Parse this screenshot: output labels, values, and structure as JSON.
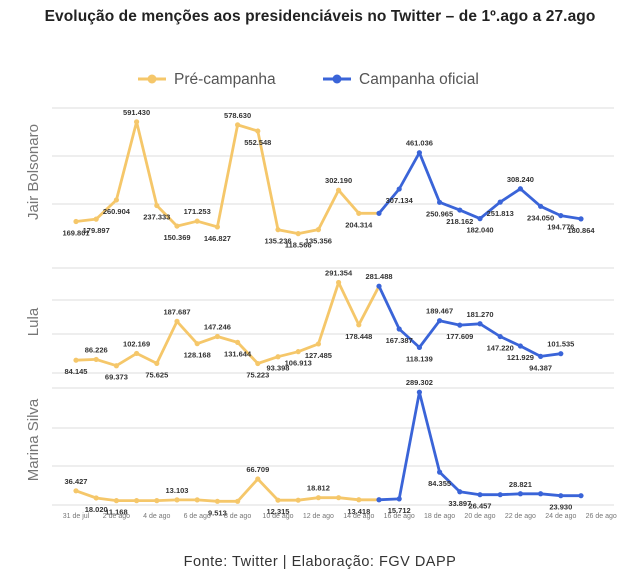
{
  "title": "Evolução de menções aos presidenciáveis no Twitter – de 1º.ago a 27.ago",
  "footer": "Fonte: Twitter | Elaboração: FGV DAPP",
  "colors": {
    "pre": "#F5C76A",
    "official": "#3A64D8",
    "grid": "#dddddd",
    "label": "#888888"
  },
  "chart_data": {
    "type": "line",
    "legend": {
      "position": "top-center",
      "entries": [
        "Pré-campanha",
        "Campanha oficial"
      ]
    },
    "x_ticks": [
      "31 de jul",
      "2 de ago",
      "4 de ago",
      "6 de ago",
      "8 de ago",
      "10 de ago",
      "12 de ago",
      "14 de ago",
      "16 de ago",
      "18 de ago",
      "20 de ago",
      "22 de ago",
      "24 de ago",
      "26 de ago"
    ],
    "x": [
      "31 de jul",
      "1 de ago",
      "2 de ago",
      "3 de ago",
      "4 de ago",
      "5 de ago",
      "6 de ago",
      "7 de ago",
      "8 de ago",
      "9 de ago",
      "10 de ago",
      "11 de ago",
      "12 de ago",
      "13 de ago",
      "14 de ago",
      "15 de ago",
      "16 de ago",
      "17 de ago",
      "18 de ago",
      "19 de ago",
      "20 de ago",
      "21 de ago",
      "22 de ago",
      "23 de ago",
      "24 de ago",
      "25 de ago",
      "26 de ago",
      "27 de ago"
    ],
    "official_start_index": 15,
    "grid": true,
    "panels": [
      {
        "name": "Jair Bolsonaro",
        "ylim": [
          100000,
          650000
        ],
        "values": [
          169801,
          179897,
          260904,
          591430,
          237333,
          150369,
          171253,
          146827,
          578630,
          552548,
          135236,
          118566,
          135356,
          302190,
          204314,
          204314,
          307134,
          461036,
          250965,
          218162,
          182040,
          251813,
          308240,
          234050,
          194776,
          180864,
          null,
          null
        ],
        "labels": [
          "169.801",
          "179.897",
          "260.904",
          "591.430",
          "237.333",
          "150.369",
          "171.253",
          "146.827",
          "578.630",
          "552.548",
          "135.236",
          "118.566",
          "135.356",
          "302.190",
          "204.314",
          null,
          "307.134",
          "461.036",
          "250.965",
          "218.162",
          "182.040",
          "251.813",
          "308.240",
          "234.050",
          "194.776",
          "180.864",
          null,
          null
        ]
      },
      {
        "name": "Lula",
        "ylim": [
          50000,
          330000
        ],
        "values": [
          84145,
          86226,
          69373,
          102169,
          75625,
          187687,
          128168,
          147246,
          131644,
          75223,
          93398,
          106913,
          127485,
          291354,
          178448,
          281488,
          167387,
          118139,
          189467,
          177609,
          181270,
          147220,
          121929,
          94387,
          101535,
          null,
          null,
          null
        ],
        "labels": [
          "84.145",
          "86.226",
          "69.373",
          "102.169",
          "75.625",
          "187.687",
          "128.168",
          "147.246",
          "131.644",
          "75.223",
          "93.398",
          "106.913",
          "127.485",
          "291.354",
          "178.448",
          "281.488",
          "167.387",
          "118.139",
          "189.467",
          "177.609",
          "181.270",
          "147.220",
          "121.929",
          "94.387",
          "101.535",
          null,
          null,
          null
        ]
      },
      {
        "name": "Marina Silva",
        "ylim": [
          0,
          300000
        ],
        "values": [
          36427,
          18020,
          11168,
          11168,
          11168,
          13103,
          13103,
          9513,
          9513,
          66709,
          12315,
          12315,
          18812,
          18812,
          13418,
          13418,
          15712,
          289302,
          84355,
          33897,
          26457,
          26457,
          28821,
          28821,
          23930,
          23930,
          null,
          null
        ],
        "labels": [
          "36.427",
          "18.020",
          "11.168",
          null,
          null,
          "13.103",
          null,
          "9.513",
          null,
          "66.709",
          "12.315",
          null,
          "18.812",
          null,
          "13.418",
          null,
          "15.712",
          "289.302",
          "84.355",
          "33.897",
          "26.457",
          null,
          "28.821",
          null,
          "23.930",
          null,
          null,
          null
        ]
      }
    ]
  }
}
